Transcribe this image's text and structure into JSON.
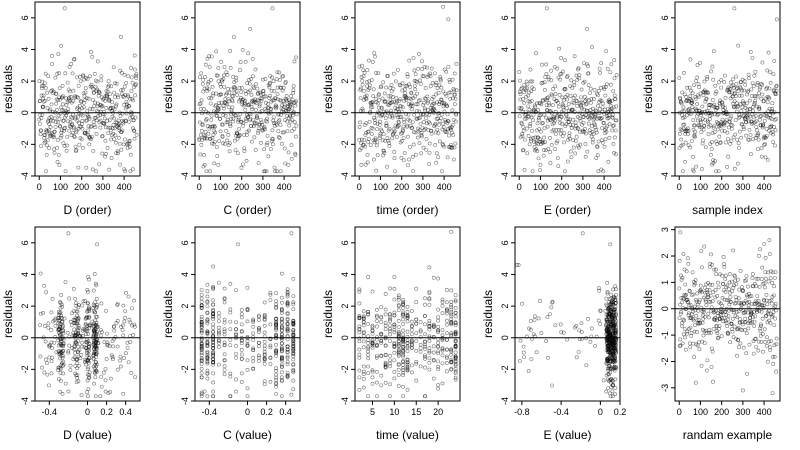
{
  "figure": {
    "background": "#ffffff",
    "point_color": "#000000",
    "ref_line_color": "#000000"
  },
  "chart_data": [
    {
      "type": "scatter",
      "xlabel": "D (order)",
      "ylabel": "residuals",
      "xlim": [
        -20,
        475
      ],
      "ylim": [
        -4,
        7
      ],
      "xticks": [
        0,
        100,
        200,
        300,
        400
      ],
      "yticks": [
        -4,
        -2,
        0,
        2,
        4,
        6
      ],
      "ref_line_y": 0,
      "x_kind": "index",
      "n": 460,
      "seed": 11,
      "y_spread": 1.55,
      "outliers": [
        [
          120,
          6.6
        ],
        [
          385,
          4.8
        ],
        [
          330,
          -3.6
        ],
        [
          95,
          -3.3
        ]
      ]
    },
    {
      "type": "scatter",
      "xlabel": "C (order)",
      "ylabel": "residuals",
      "xlim": [
        -20,
        475
      ],
      "ylim": [
        -4,
        7
      ],
      "xticks": [
        0,
        100,
        200,
        300,
        400
      ],
      "yticks": [
        -4,
        -2,
        0,
        2,
        4,
        6
      ],
      "ref_line_y": 0,
      "x_kind": "index",
      "n": 460,
      "seed": 23,
      "y_spread": 1.55,
      "outliers": [
        [
          345,
          6.6
        ],
        [
          240,
          5.3
        ],
        [
          90,
          -3.3
        ],
        [
          420,
          -3.3
        ]
      ]
    },
    {
      "type": "scatter",
      "xlabel": "time (order)",
      "ylabel": "residuals",
      "xlim": [
        -20,
        475
      ],
      "ylim": [
        -4,
        7
      ],
      "xticks": [
        0,
        100,
        200,
        300,
        400
      ],
      "yticks": [
        -4,
        -2,
        0,
        2,
        4,
        6
      ],
      "ref_line_y": 0,
      "x_kind": "index",
      "n": 460,
      "seed": 37,
      "y_spread": 1.55,
      "outliers": [
        [
          395,
          6.7
        ],
        [
          420,
          5.9
        ],
        [
          10,
          -3.3
        ],
        [
          210,
          -3.0
        ]
      ]
    },
    {
      "type": "scatter",
      "xlabel": "E (order)",
      "ylabel": "residuals",
      "xlim": [
        -20,
        475
      ],
      "ylim": [
        -4,
        7
      ],
      "xticks": [
        0,
        100,
        200,
        300,
        400
      ],
      "yticks": [
        -4,
        -2,
        0,
        2,
        4,
        6
      ],
      "ref_line_y": 0,
      "x_kind": "index",
      "n": 460,
      "seed": 41,
      "y_spread": 1.55,
      "outliers": [
        [
          130,
          6.6
        ],
        [
          320,
          5.3
        ],
        [
          100,
          -3.3
        ],
        [
          420,
          -3.1
        ]
      ]
    },
    {
      "type": "scatter",
      "xlabel": "sample index",
      "ylabel": "residuals",
      "xlim": [
        -20,
        475
      ],
      "ylim": [
        -4,
        7
      ],
      "xticks": [
        0,
        100,
        200,
        300,
        400
      ],
      "yticks": [
        -4,
        -2,
        0,
        2,
        4,
        6
      ],
      "ref_line_y": 0,
      "x_kind": "index",
      "n": 460,
      "seed": 53,
      "y_spread": 1.55,
      "outliers": [
        [
          260,
          6.6
        ],
        [
          460,
          5.9
        ],
        [
          65,
          -3.6
        ],
        [
          160,
          -3.0
        ]
      ]
    },
    {
      "type": "scatter",
      "xlabel": "D (value)",
      "ylabel": "residuals",
      "xlim": [
        -0.55,
        0.55
      ],
      "ylim": [
        -4,
        7
      ],
      "xticks": [
        -0.4,
        0,
        0.2,
        0.4
      ],
      "yticks": [
        -4,
        -2,
        0,
        2,
        4,
        6
      ],
      "ref_line_y": 0,
      "x_kind": "uniform",
      "n": 460,
      "seed": 61,
      "y_spread": 1.55,
      "x_from": -0.5,
      "x_to": 0.5,
      "clusters": [
        [
          -0.28,
          0.03,
          70
        ],
        [
          -0.12,
          0.03,
          60
        ],
        [
          0.0,
          0.02,
          60
        ],
        [
          0.08,
          0.02,
          90
        ]
      ],
      "outliers": [
        [
          -0.2,
          6.6
        ],
        [
          0.1,
          5.9
        ],
        [
          -0.2,
          -3.4
        ],
        [
          0.22,
          -3.5
        ]
      ]
    },
    {
      "type": "scatter",
      "xlabel": "C (value)",
      "ylabel": "residuals",
      "xlim": [
        -0.55,
        0.55
      ],
      "ylim": [
        -4,
        7
      ],
      "xticks": [
        -0.4,
        0,
        0.2,
        0.4
      ],
      "yticks": [
        -4,
        -2,
        0,
        2,
        4,
        6
      ],
      "ref_line_y": 0,
      "x_kind": "columns",
      "n": 460,
      "seed": 71,
      "y_spread": 1.55,
      "columns": [
        -0.48,
        -0.42,
        -0.36,
        -0.3,
        -0.24,
        -0.18,
        -0.12,
        -0.06,
        0.0,
        0.06,
        0.12,
        0.18,
        0.24,
        0.3,
        0.36,
        0.42,
        0.48
      ],
      "column_weights": [
        3,
        2,
        3,
        1,
        1,
        1,
        1,
        1,
        1,
        1,
        1,
        1,
        1,
        2,
        3,
        2,
        3
      ],
      "outliers": [
        [
          -0.1,
          5.9
        ],
        [
          0.46,
          6.6
        ],
        [
          -0.45,
          -3.4
        ],
        [
          0.46,
          -3.6
        ]
      ]
    },
    {
      "type": "scatter",
      "xlabel": "time (value)",
      "ylabel": "residuals",
      "xlim": [
        1,
        25
      ],
      "ylim": [
        -4,
        7
      ],
      "xticks": [
        5,
        10,
        15,
        20
      ],
      "yticks": [
        -4,
        -2,
        0,
        2,
        4,
        6
      ],
      "ref_line_y": 0,
      "x_kind": "columns",
      "n": 460,
      "seed": 83,
      "y_spread": 1.55,
      "columns": [
        2,
        3,
        4,
        5,
        6,
        7,
        8,
        9,
        10,
        11,
        12,
        13,
        14,
        15,
        16,
        17,
        18,
        19,
        20,
        21,
        22,
        23,
        24
      ],
      "column_weights": [
        1,
        1,
        1,
        1,
        1,
        1,
        1,
        1,
        2,
        2,
        3,
        2,
        1,
        1,
        1,
        1,
        1,
        1,
        1,
        1,
        1,
        2,
        3
      ],
      "outliers": [
        [
          23,
          6.7
        ],
        [
          12,
          -3.1
        ],
        [
          2,
          -3.3
        ]
      ]
    },
    {
      "type": "scatter",
      "xlabel": "E (value)",
      "ylabel": "residuals",
      "xlim": [
        -0.87,
        0.2
      ],
      "ylim": [
        -4,
        7
      ],
      "xticks": [
        -0.8,
        -0.4,
        0,
        0.2
      ],
      "yticks": [
        -4,
        -2,
        0,
        2,
        4,
        6
      ],
      "ref_line_y": 0,
      "x_kind": "skewed",
      "n": 460,
      "seed": 97,
      "y_spread": 1.5,
      "dense_from": 0.06,
      "dense_to": 0.16,
      "sparse_from": -0.85,
      "sparse_count": 60,
      "outliers": [
        [
          -0.85,
          4.6
        ],
        [
          -0.18,
          6.6
        ],
        [
          0.1,
          5.9
        ],
        [
          0.06,
          -3.4
        ]
      ]
    },
    {
      "type": "scatter",
      "xlabel": "randam example",
      "ylabel": "residuals",
      "xlim": [
        -20,
        475
      ],
      "ylim": [
        -3.5,
        3.1
      ],
      "xticks": [
        0,
        100,
        200,
        300,
        400
      ],
      "yticks": [
        -3,
        -2,
        -1,
        0,
        1,
        2,
        3
      ],
      "ref_line_y": 0,
      "x_kind": "index",
      "n": 460,
      "seed": 109,
      "y_spread": 0.95,
      "outliers": [
        [
          5,
          2.9
        ],
        [
          300,
          -3.1
        ],
        [
          440,
          -3.2
        ]
      ]
    }
  ]
}
